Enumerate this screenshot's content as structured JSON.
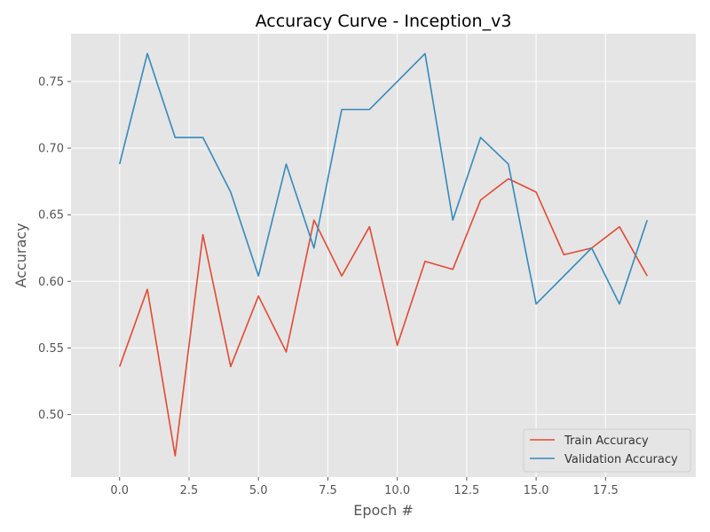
{
  "chart_data": {
    "type": "line",
    "title": "Accuracy Curve - Inception_v3",
    "xlabel": "Epoch #",
    "ylabel": "Accuracy",
    "x": [
      0,
      1,
      2,
      3,
      4,
      5,
      6,
      7,
      8,
      9,
      10,
      11,
      12,
      13,
      14,
      15,
      16,
      17,
      18,
      19
    ],
    "xlim": [
      -1.75,
      20.75
    ],
    "ylim": [
      0.4531,
      0.7859
    ],
    "xticks": [
      0.0,
      2.5,
      5.0,
      7.5,
      10.0,
      12.5,
      15.0,
      17.5
    ],
    "xtick_labels": [
      "0.0",
      "2.5",
      "5.0",
      "7.5",
      "10.0",
      "12.5",
      "15.0",
      "17.5"
    ],
    "yticks": [
      0.5,
      0.55,
      0.6,
      0.65,
      0.7,
      0.75
    ],
    "ytick_labels": [
      "0.50",
      "0.55",
      "0.60",
      "0.65",
      "0.70",
      "0.75"
    ],
    "grid": true,
    "legend_position": "lower-right",
    "series": [
      {
        "name": "Train Accuracy",
        "color": "#E24A33",
        "values": [
          0.536,
          0.594,
          0.469,
          0.635,
          0.536,
          0.589,
          0.547,
          0.646,
          0.604,
          0.641,
          0.552,
          0.615,
          0.609,
          0.661,
          0.677,
          0.667,
          0.62,
          0.625,
          0.641,
          0.604
        ]
      },
      {
        "name": "Validation Accuracy",
        "color": "#348ABD",
        "values": [
          0.688,
          0.771,
          0.708,
          0.708,
          0.667,
          0.604,
          0.688,
          0.625,
          0.729,
          0.729,
          0.75,
          0.771,
          0.646,
          0.708,
          0.688,
          0.583,
          0.604,
          0.625,
          0.583,
          0.646
        ]
      }
    ]
  },
  "style": {
    "plot_background": "#E5E5E5",
    "grid_color": "#FFFFFF",
    "tick_color": "#555555"
  }
}
